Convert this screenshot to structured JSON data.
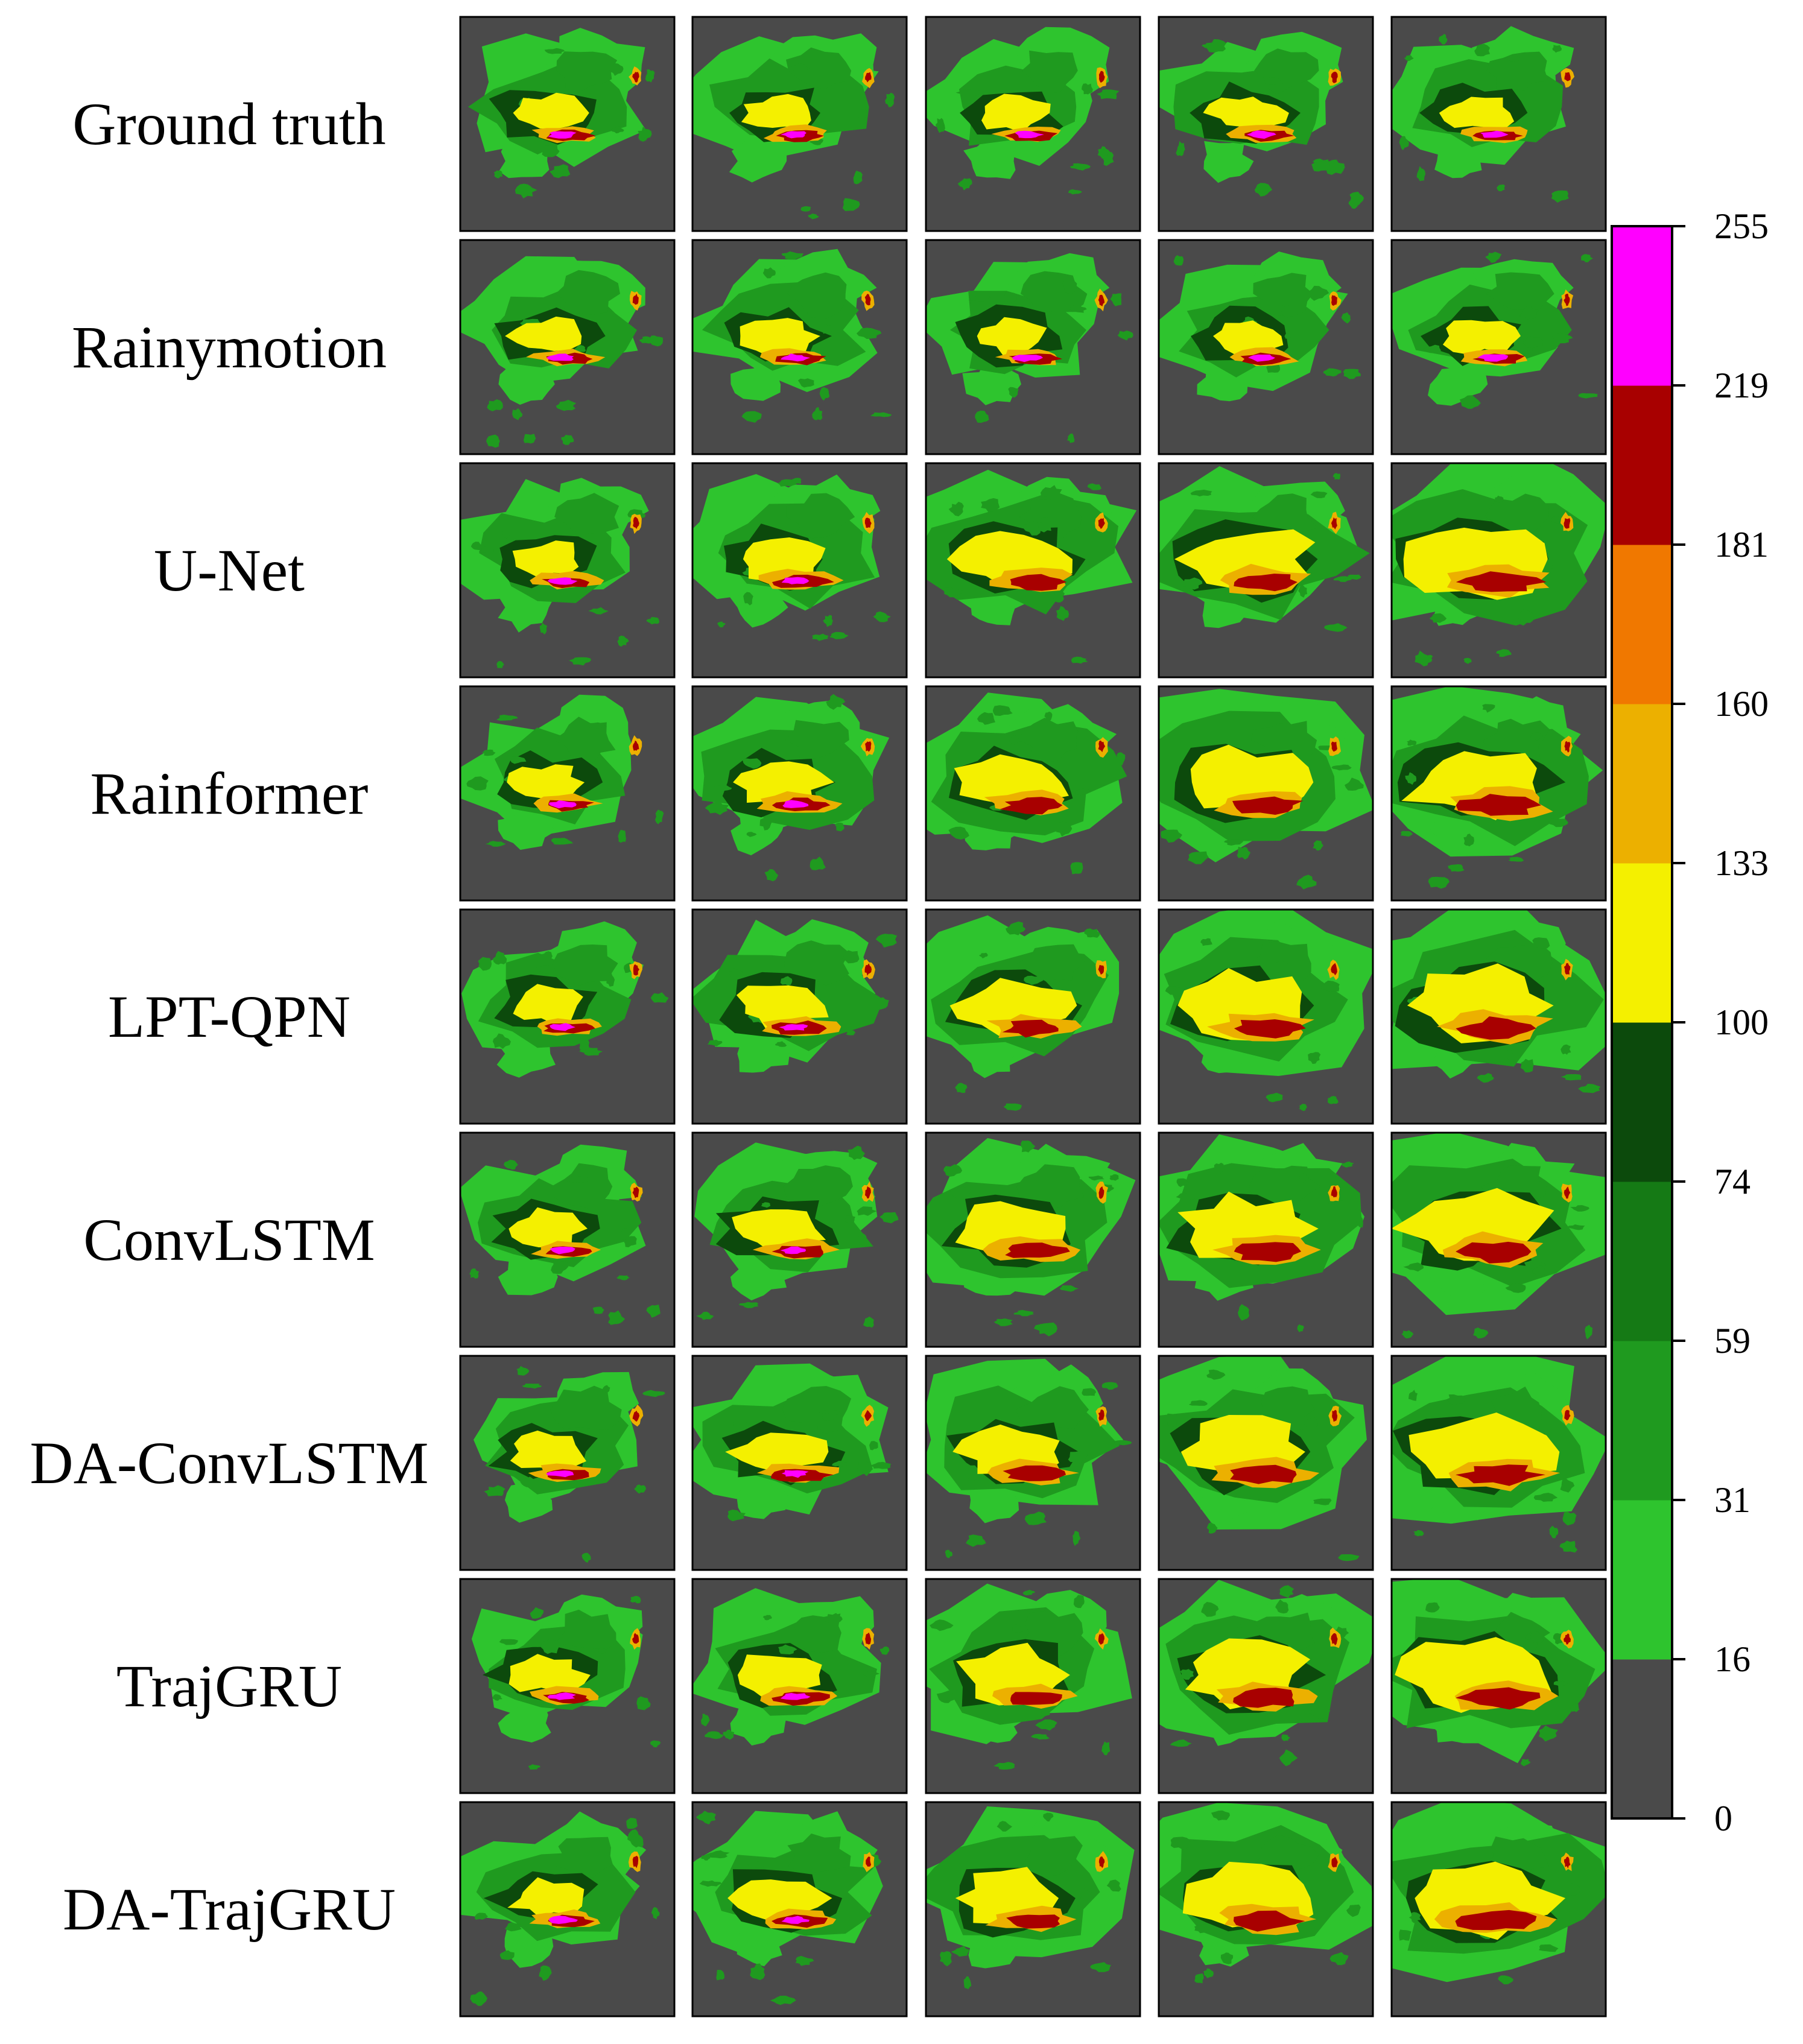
{
  "figure": {
    "rows": [
      {
        "label": "Ground truth"
      },
      {
        "label": "Rainymotion"
      },
      {
        "label": "U-Net"
      },
      {
        "label": "Rainformer"
      },
      {
        "label": "LPT-QPN"
      },
      {
        "label": "ConvLSTM"
      },
      {
        "label": "DA-ConvLSTM"
      },
      {
        "label": "TrajGRU"
      },
      {
        "label": "DA-TrajGRU"
      }
    ],
    "columns_per_row": 5,
    "background_color": "#4a4a4a"
  },
  "colorbar": {
    "ticks": [
      "0",
      "16",
      "31",
      "59",
      "74",
      "100",
      "133",
      "160",
      "181",
      "219",
      "255"
    ],
    "colors": [
      "#4a4a4a",
      "#2ec42e",
      "#1f9a1f",
      "#157a15",
      "#0c4a0c",
      "#f4f000",
      "#ecb000",
      "#f07800",
      "#a80000",
      "#ff00ff"
    ]
  },
  "palette": {
    "light_green": "#2ec42e",
    "green": "#1f9a1f",
    "dark_green": "#0c4a0c",
    "yellow": "#f4f000",
    "orange": "#ecb000",
    "deep_orange": "#f07800",
    "red": "#a80000",
    "magenta": "#ff00ff"
  }
}
